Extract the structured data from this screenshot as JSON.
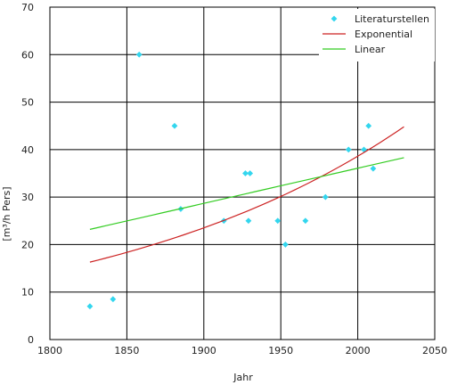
{
  "chart_data": {
    "type": "scatter",
    "xlabel": "Jahr",
    "ylabel": "[m³/h Pers]",
    "xlim": [
      1800,
      2050
    ],
    "ylim": [
      0,
      70
    ],
    "x_ticks": [
      1800,
      1850,
      1900,
      1950,
      2000,
      2050
    ],
    "y_ticks": [
      0,
      10,
      20,
      30,
      40,
      50,
      60,
      70
    ],
    "grid": true,
    "legend_position": "top-right",
    "series": [
      {
        "name": "Literaturstellen",
        "kind": "scatter",
        "marker": "diamond",
        "color": "#33d6ee",
        "points": [
          [
            1826,
            7
          ],
          [
            1841,
            8.5
          ],
          [
            1858,
            60
          ],
          [
            1881,
            45
          ],
          [
            1885,
            27.5
          ],
          [
            1913,
            25
          ],
          [
            1927,
            35
          ],
          [
            1929,
            25
          ],
          [
            1930,
            35
          ],
          [
            1948,
            25
          ],
          [
            1953,
            20
          ],
          [
            1966,
            25
          ],
          [
            1979,
            30
          ],
          [
            1994,
            40
          ],
          [
            2004,
            40
          ],
          [
            2007,
            45
          ],
          [
            2010,
            36
          ]
        ]
      },
      {
        "name": "Exponential",
        "kind": "line",
        "color": "#cc2222",
        "x_range": [
          1826,
          2030
        ],
        "y_start": 16.3,
        "y_end": 44.8
      },
      {
        "name": "Linear",
        "kind": "line",
        "color": "#33cc22",
        "x_range": [
          1826,
          2030
        ],
        "y_start": 23.2,
        "y_end": 38.3
      }
    ]
  }
}
